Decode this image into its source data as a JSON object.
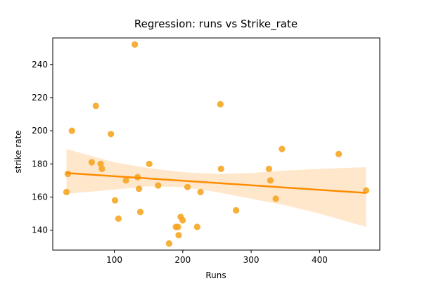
{
  "chart_data": {
    "type": "scatter",
    "title": "Regression: runs vs Strike_rate",
    "xlabel": "Runs",
    "ylabel": "strike rate",
    "xlim": [
      10,
      488
    ],
    "ylim": [
      128,
      256
    ],
    "xticks": [
      100,
      200,
      300,
      400
    ],
    "yticks": [
      140,
      160,
      180,
      200,
      220,
      240
    ],
    "grid": false,
    "colors": {
      "points": "#f5a623",
      "regression_line": "#ff8c00",
      "confidence_band": "#ffe7cc"
    },
    "points": {
      "x": [
        30,
        32,
        38,
        67,
        73,
        80,
        82,
        95,
        101,
        106,
        117,
        130,
        134,
        136,
        138,
        151,
        164,
        180,
        190,
        193,
        194,
        197,
        200,
        207,
        221,
        226,
        255,
        256,
        278,
        326,
        328,
        336,
        345,
        428,
        468
      ],
      "y": [
        163,
        174,
        200,
        181,
        215,
        180,
        177,
        198,
        158,
        147,
        170,
        252,
        172,
        165,
        151,
        180,
        167,
        132,
        142,
        142,
        137,
        148,
        146,
        166,
        142,
        163,
        216,
        177,
        152,
        177,
        170,
        159,
        189,
        186,
        164
      ]
    },
    "regression": {
      "x": [
        30,
        468
      ],
      "y": [
        174.5,
        162.5
      ]
    },
    "confidence_band": {
      "x": [
        30,
        100,
        150,
        200,
        250,
        300,
        350,
        400,
        468
      ],
      "upper": [
        189,
        181,
        177.5,
        175,
        174,
        174.5,
        176,
        177,
        178
      ],
      "lower": [
        162,
        164.5,
        166.5,
        166,
        163,
        159,
        155,
        150,
        142
      ]
    }
  }
}
